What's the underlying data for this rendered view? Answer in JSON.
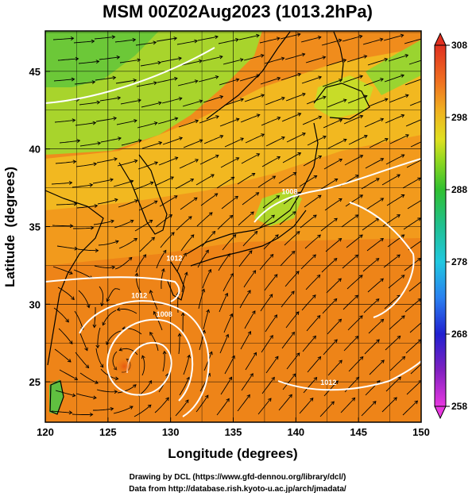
{
  "title": "MSM 00Z02Aug2023 (1013.2hPa)",
  "x_axis": {
    "label": "Longitude (degrees)",
    "ticks": [
      {
        "value": 120,
        "label": "120"
      },
      {
        "value": 125,
        "label": "125"
      },
      {
        "value": 130,
        "label": "130"
      },
      {
        "value": 135,
        "label": "135"
      },
      {
        "value": 140,
        "label": "140"
      },
      {
        "value": 145,
        "label": "145"
      },
      {
        "value": 150,
        "label": "150"
      }
    ],
    "range": [
      120,
      150
    ]
  },
  "y_axis": {
    "label": "Latitude  (degrees)",
    "ticks": [
      {
        "value": 25,
        "label": "25"
      },
      {
        "value": 30,
        "label": "30"
      },
      {
        "value": 35,
        "label": "35"
      },
      {
        "value": 40,
        "label": "40"
      },
      {
        "value": 45,
        "label": "45"
      }
    ],
    "range": [
      22.4,
      47.6
    ]
  },
  "colorbar": {
    "range": [
      258,
      308
    ],
    "ticks": [
      {
        "value": 308,
        "label": "308"
      },
      {
        "value": 298,
        "label": "298"
      },
      {
        "value": 288,
        "label": "288"
      },
      {
        "value": 278,
        "label": "278"
      },
      {
        "value": 268,
        "label": "268"
      },
      {
        "value": 258,
        "label": "258"
      }
    ],
    "colors": [
      "#e040e0",
      "#8020c0",
      "#2020d0",
      "#2080f0",
      "#20c0e0",
      "#20c0a0",
      "#30c030",
      "#80d020",
      "#d0e020",
      "#f0b020",
      "#f08020",
      "#e04020"
    ]
  },
  "contour_labels": [
    {
      "text": "1008",
      "lon": 139.5,
      "lat": 37.1
    },
    {
      "text": "1012",
      "lon": 130.3,
      "lat": 32.8
    },
    {
      "text": "1012",
      "lon": 127.5,
      "lat": 30.4
    },
    {
      "text": "1008",
      "lon": 129.5,
      "lat": 29.2
    },
    {
      "text": "1012",
      "lon": 142.6,
      "lat": 24.8
    }
  ],
  "typhoon_center": {
    "lon": 126.3,
    "lat": 26.0
  },
  "credits": {
    "line1": "Drawing by DCL (https://www.gfd-dennou.org/library/dcl/)",
    "line2": "Data from http://database.rish.kyoto-u.ac.jp/arch/jmadata/"
  },
  "map_colors": {
    "warm_sea": "#f08a1a",
    "mid": "#f2a31c",
    "cool_land": "#a0d030",
    "cold": "#40c040"
  }
}
